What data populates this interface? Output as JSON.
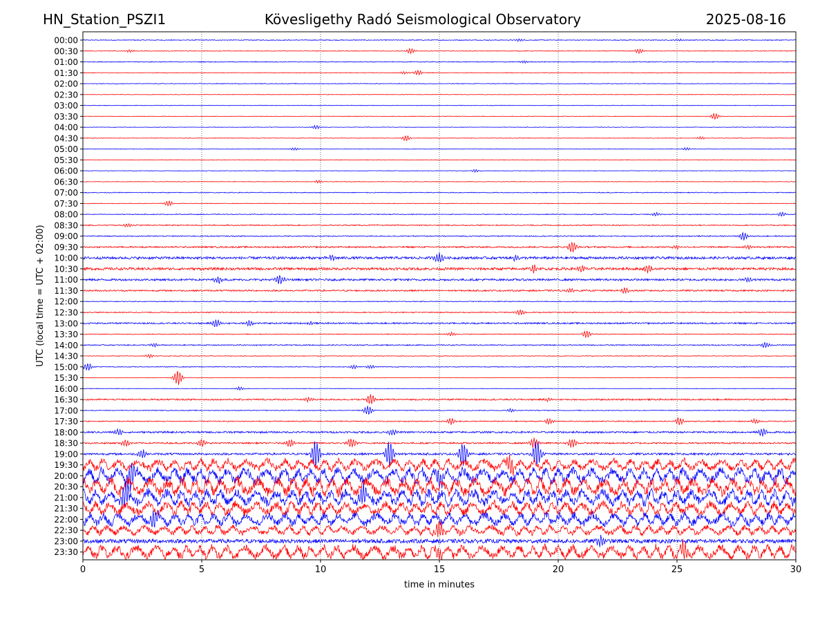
{
  "header": {
    "station": "HN_Station_PSZI1",
    "observatory": "Kövesligethy Radó Seismological Observatory",
    "date": "2025-08-16"
  },
  "chart_data": {
    "type": "line",
    "title": "Kövesligethy Radó Seismological Observatory",
    "xlabel": "time in minutes",
    "ylabel": "UTC (local time = UTC + 02:00)",
    "xlim": [
      0,
      30
    ],
    "x_ticks": [
      0,
      5,
      10,
      15,
      20,
      25,
      30
    ],
    "x_tick_labels": [
      "0",
      "5",
      "10",
      "15",
      "20",
      "25",
      "30"
    ],
    "vertical_grid": true,
    "vertical_grid_at": [
      5,
      10,
      15,
      20,
      25
    ],
    "series_colors": [
      "#0000ff",
      "#ff0000"
    ],
    "rows": [
      {
        "label": "00:00",
        "noise": 0.15,
        "events": [
          [
            18.4,
            0.3
          ],
          [
            25.1,
            0.2
          ]
        ]
      },
      {
        "label": "00:30",
        "noise": 0.12,
        "events": [
          [
            2.0,
            0.3
          ],
          [
            13.8,
            0.6
          ],
          [
            23.4,
            0.5
          ]
        ]
      },
      {
        "label": "01:00",
        "noise": 0.15,
        "events": [
          [
            18.6,
            0.3
          ]
        ]
      },
      {
        "label": "01:30",
        "noise": 0.12,
        "events": [
          [
            13.5,
            0.3
          ],
          [
            14.1,
            0.5
          ]
        ]
      },
      {
        "label": "02:00",
        "noise": 0.12,
        "events": []
      },
      {
        "label": "02:30",
        "noise": 0.1,
        "events": []
      },
      {
        "label": "03:00",
        "noise": 0.1,
        "events": []
      },
      {
        "label": "03:30",
        "noise": 0.1,
        "events": [
          [
            26.6,
            0.7
          ]
        ]
      },
      {
        "label": "04:00",
        "noise": 0.1,
        "events": [
          [
            9.8,
            0.4
          ]
        ]
      },
      {
        "label": "04:30",
        "noise": 0.1,
        "events": [
          [
            13.6,
            0.6
          ],
          [
            26.0,
            0.3
          ]
        ]
      },
      {
        "label": "05:00",
        "noise": 0.1,
        "events": [
          [
            8.9,
            0.3
          ],
          [
            25.4,
            0.3
          ]
        ]
      },
      {
        "label": "05:30",
        "noise": 0.1,
        "events": []
      },
      {
        "label": "06:00",
        "noise": 0.1,
        "events": [
          [
            16.5,
            0.3
          ]
        ]
      },
      {
        "label": "06:30",
        "noise": 0.1,
        "events": [
          [
            9.9,
            0.3
          ]
        ]
      },
      {
        "label": "07:00",
        "noise": 0.15,
        "events": []
      },
      {
        "label": "07:30",
        "noise": 0.12,
        "events": [
          [
            3.6,
            0.6
          ]
        ]
      },
      {
        "label": "08:00",
        "noise": 0.15,
        "events": [
          [
            24.1,
            0.4
          ],
          [
            29.4,
            0.5
          ]
        ]
      },
      {
        "label": "08:30",
        "noise": 0.2,
        "events": [
          [
            1.9,
            0.4
          ]
        ]
      },
      {
        "label": "09:00",
        "noise": 0.2,
        "events": [
          [
            27.8,
            0.9
          ]
        ]
      },
      {
        "label": "09:30",
        "noise": 0.3,
        "events": [
          [
            20.6,
            1.2
          ],
          [
            25.0,
            0.4
          ],
          [
            28.0,
            0.4
          ]
        ]
      },
      {
        "label": "10:00",
        "noise": 0.5,
        "events": [
          [
            10.5,
            0.6
          ],
          [
            15.0,
            1.2
          ],
          [
            18.2,
            0.5
          ]
        ]
      },
      {
        "label": "10:30",
        "noise": 0.5,
        "events": [
          [
            19.0,
            0.8
          ],
          [
            21.0,
            0.6
          ],
          [
            23.8,
            0.8
          ]
        ]
      },
      {
        "label": "11:00",
        "noise": 0.4,
        "events": [
          [
            5.7,
            0.7
          ],
          [
            8.3,
            1.0
          ],
          [
            28.0,
            0.4
          ]
        ]
      },
      {
        "label": "11:30",
        "noise": 0.3,
        "events": [
          [
            20.5,
            0.5
          ],
          [
            22.8,
            0.6
          ]
        ]
      },
      {
        "label": "12:00",
        "noise": 0.15,
        "events": []
      },
      {
        "label": "12:30",
        "noise": 0.2,
        "events": [
          [
            18.4,
            0.6
          ]
        ]
      },
      {
        "label": "13:00",
        "noise": 0.3,
        "events": [
          [
            5.6,
            0.8
          ],
          [
            7.0,
            0.6
          ],
          [
            9.6,
            0.4
          ]
        ]
      },
      {
        "label": "13:30",
        "noise": 0.15,
        "events": [
          [
            15.5,
            0.4
          ],
          [
            21.2,
            0.8
          ]
        ]
      },
      {
        "label": "14:00",
        "noise": 0.2,
        "events": [
          [
            3.0,
            0.4
          ],
          [
            28.7,
            0.6
          ]
        ]
      },
      {
        "label": "14:30",
        "noise": 0.12,
        "events": [
          [
            2.8,
            0.4
          ]
        ]
      },
      {
        "label": "15:00",
        "noise": 0.15,
        "events": [
          [
            0.2,
            0.8
          ],
          [
            11.4,
            0.4
          ],
          [
            12.1,
            0.4
          ]
        ]
      },
      {
        "label": "15:30",
        "noise": 0.08,
        "events": [
          [
            4.0,
            1.6
          ]
        ]
      },
      {
        "label": "16:00",
        "noise": 0.1,
        "events": [
          [
            6.6,
            0.4
          ]
        ]
      },
      {
        "label": "16:30",
        "noise": 0.3,
        "events": [
          [
            9.5,
            0.5
          ],
          [
            12.1,
            1.2
          ],
          [
            19.6,
            0.4
          ]
        ]
      },
      {
        "label": "17:00",
        "noise": 0.15,
        "events": [
          [
            12.0,
            1.0
          ],
          [
            18.0,
            0.4
          ]
        ]
      },
      {
        "label": "17:30",
        "noise": 0.2,
        "events": [
          [
            15.5,
            0.7
          ],
          [
            19.6,
            0.6
          ],
          [
            25.1,
            0.8
          ],
          [
            28.3,
            0.5
          ]
        ]
      },
      {
        "label": "18:00",
        "noise": 0.35,
        "events": [
          [
            1.5,
            0.7
          ],
          [
            13.0,
            0.6
          ],
          [
            28.6,
            0.9
          ]
        ]
      },
      {
        "label": "18:30",
        "noise": 0.3,
        "events": [
          [
            1.8,
            0.8
          ],
          [
            5.0,
            0.8
          ],
          [
            8.7,
            0.8
          ],
          [
            11.3,
            1.0
          ],
          [
            19.0,
            1.2
          ],
          [
            20.6,
            1.0
          ]
        ]
      },
      {
        "label": "19:00",
        "noise": 0.4,
        "events": [
          [
            2.5,
            0.9
          ],
          [
            9.8,
            3.0
          ],
          [
            12.9,
            3.0
          ],
          [
            16.0,
            2.5
          ],
          [
            19.1,
            3.0
          ]
        ]
      },
      {
        "label": "19:30",
        "noise": 1.2,
        "events": [
          [
            18.0,
            2.0
          ]
        ]
      },
      {
        "label": "20:00",
        "noise": 1.6,
        "events": [
          [
            2.0,
            3.0
          ],
          [
            15.0,
            2.5
          ]
        ]
      },
      {
        "label": "20:30",
        "noise": 1.8,
        "events": []
      },
      {
        "label": "21:00",
        "noise": 1.6,
        "events": [
          [
            1.8,
            3.0
          ],
          [
            11.8,
            2.5
          ]
        ]
      },
      {
        "label": "21:30",
        "noise": 1.4,
        "events": []
      },
      {
        "label": "22:00",
        "noise": 1.3,
        "events": [
          [
            3.0,
            2.0
          ]
        ]
      },
      {
        "label": "22:30",
        "noise": 1.0,
        "events": [
          [
            15.0,
            1.8
          ]
        ]
      },
      {
        "label": "23:00",
        "noise": 0.8,
        "events": [
          [
            21.8,
            1.2
          ]
        ]
      },
      {
        "label": "23:30",
        "noise": 1.4,
        "events": [
          [
            15.0,
            2.0
          ],
          [
            25.3,
            1.8
          ]
        ]
      }
    ]
  }
}
